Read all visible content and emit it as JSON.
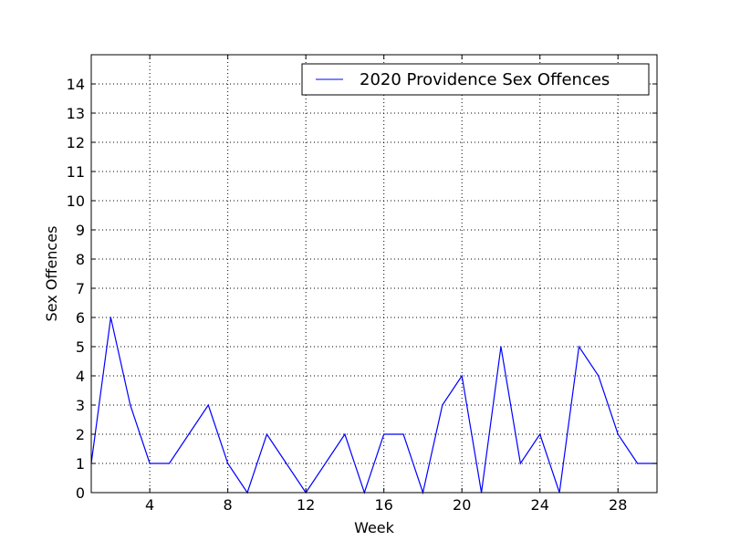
{
  "chart_data": {
    "type": "line",
    "xlabel": "Week",
    "ylabel": "Sex Offences",
    "xlim": [
      1,
      30
    ],
    "ylim": [
      0,
      15
    ],
    "x_ticks": [
      4,
      8,
      12,
      16,
      20,
      24,
      28
    ],
    "y_ticks": [
      0,
      1,
      2,
      3,
      4,
      5,
      6,
      7,
      8,
      9,
      10,
      11,
      12,
      13,
      14
    ],
    "grid": true,
    "legend_position": "top-right",
    "series": [
      {
        "name": "2020 Providence Sex Offences",
        "color": "#0000ff",
        "x": [
          1,
          2,
          3,
          4,
          5,
          6,
          7,
          8,
          9,
          10,
          11,
          12,
          13,
          14,
          15,
          16,
          17,
          18,
          19,
          20,
          21,
          22,
          23,
          24,
          25,
          26,
          27,
          28,
          29,
          30
        ],
        "values": [
          1,
          6,
          3,
          1,
          1,
          2,
          3,
          1,
          0,
          2,
          1,
          0,
          1,
          2,
          0,
          2,
          2,
          0,
          3,
          4,
          0,
          5,
          1,
          2,
          0,
          5,
          4,
          2,
          1,
          1
        ]
      }
    ]
  }
}
